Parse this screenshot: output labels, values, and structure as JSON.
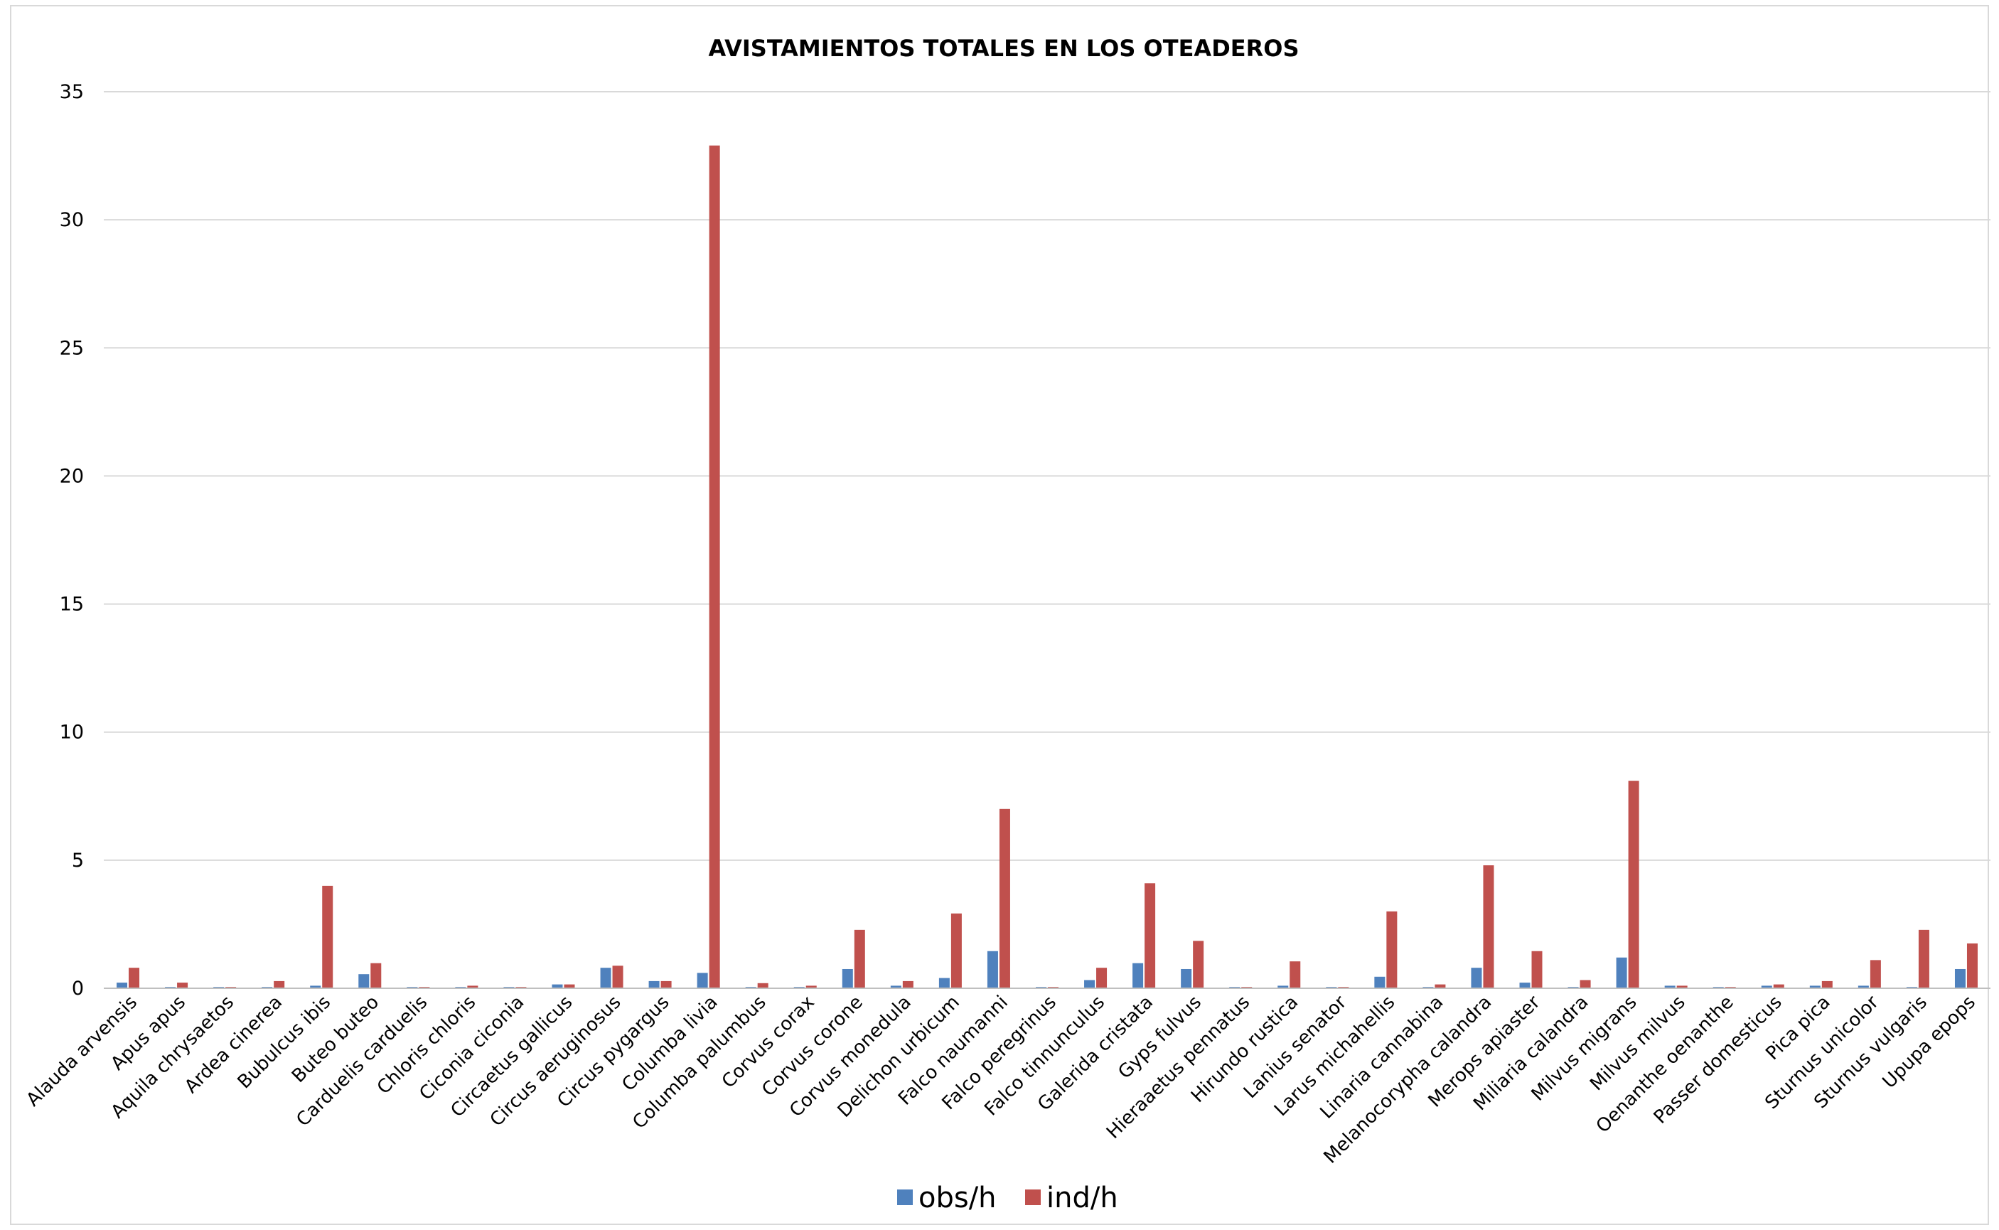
{
  "chart_data": {
    "type": "bar",
    "title": "AVISTAMIENTOS TOTALES EN LOS OTEADEROS",
    "xlabel": "",
    "ylabel": "",
    "ylim": [
      0,
      35
    ],
    "yticks": [
      "0",
      "5",
      "10",
      "15",
      "20",
      "25",
      "30",
      "35"
    ],
    "grid": true,
    "legend_position": "bottom",
    "categories": [
      "Alauda arvensis",
      "Apus apus",
      "Aquila chrysaetos",
      "Ardea cinerea",
      "Bubulcus ibis",
      "Buteo buteo",
      "Carduelis carduelis",
      "Chloris chloris",
      "Ciconia ciconia",
      "Circaetus gallicus",
      "Circus aeruginosus",
      "Circus pygargus",
      "Columba livia",
      "Columba palumbus",
      "Corvus corax",
      "Corvus corone",
      "Corvus monedula",
      "Delichon urbicum",
      "Falco naumanni",
      "Falco peregrinus",
      "Falco tinnunculus",
      "Galerida cristata",
      "Gyps fulvus",
      "Hieraaetus pennatus",
      "Hirundo rustica",
      "Lanius senator",
      "Larus michahellis",
      "Linaria cannabina",
      "Melanocorypha calandra",
      "Merops apiaster",
      "Miliaria calandra",
      "Milvus migrans",
      "Milvus milvus",
      "Oenanthe oenanthe",
      "Passer domesticus",
      "Pica pica",
      "Sturnus unicolor",
      "Sturnus vulgaris",
      "Upupa epops"
    ],
    "series": [
      {
        "name": "obs/h",
        "color": "#4f81bd",
        "values": [
          0.22,
          0.05,
          0.05,
          0.05,
          0.1,
          0.55,
          0.05,
          0.05,
          0.05,
          0.15,
          0.8,
          0.28,
          0.6,
          0.05,
          0.05,
          0.75,
          0.1,
          0.4,
          1.45,
          0.05,
          0.32,
          0.98,
          0.75,
          0.05,
          0.1,
          0.05,
          0.45,
          0.05,
          0.8,
          0.22,
          0.05,
          1.2,
          0.1,
          0.05,
          0.1,
          0.1,
          0.1,
          0.05,
          0.75
        ]
      },
      {
        "name": "ind/h",
        "color": "#c0504d",
        "values": [
          0.8,
          0.22,
          0.05,
          0.28,
          4.0,
          0.98,
          0.05,
          0.1,
          0.05,
          0.15,
          0.88,
          0.28,
          32.9,
          0.2,
          0.1,
          2.28,
          0.28,
          2.92,
          7.0,
          0.05,
          0.8,
          4.1,
          1.85,
          0.05,
          1.05,
          0.05,
          3.0,
          0.15,
          4.8,
          1.45,
          0.32,
          8.1,
          0.1,
          0.05,
          0.15,
          0.28,
          1.1,
          2.28,
          1.75
        ]
      }
    ]
  }
}
